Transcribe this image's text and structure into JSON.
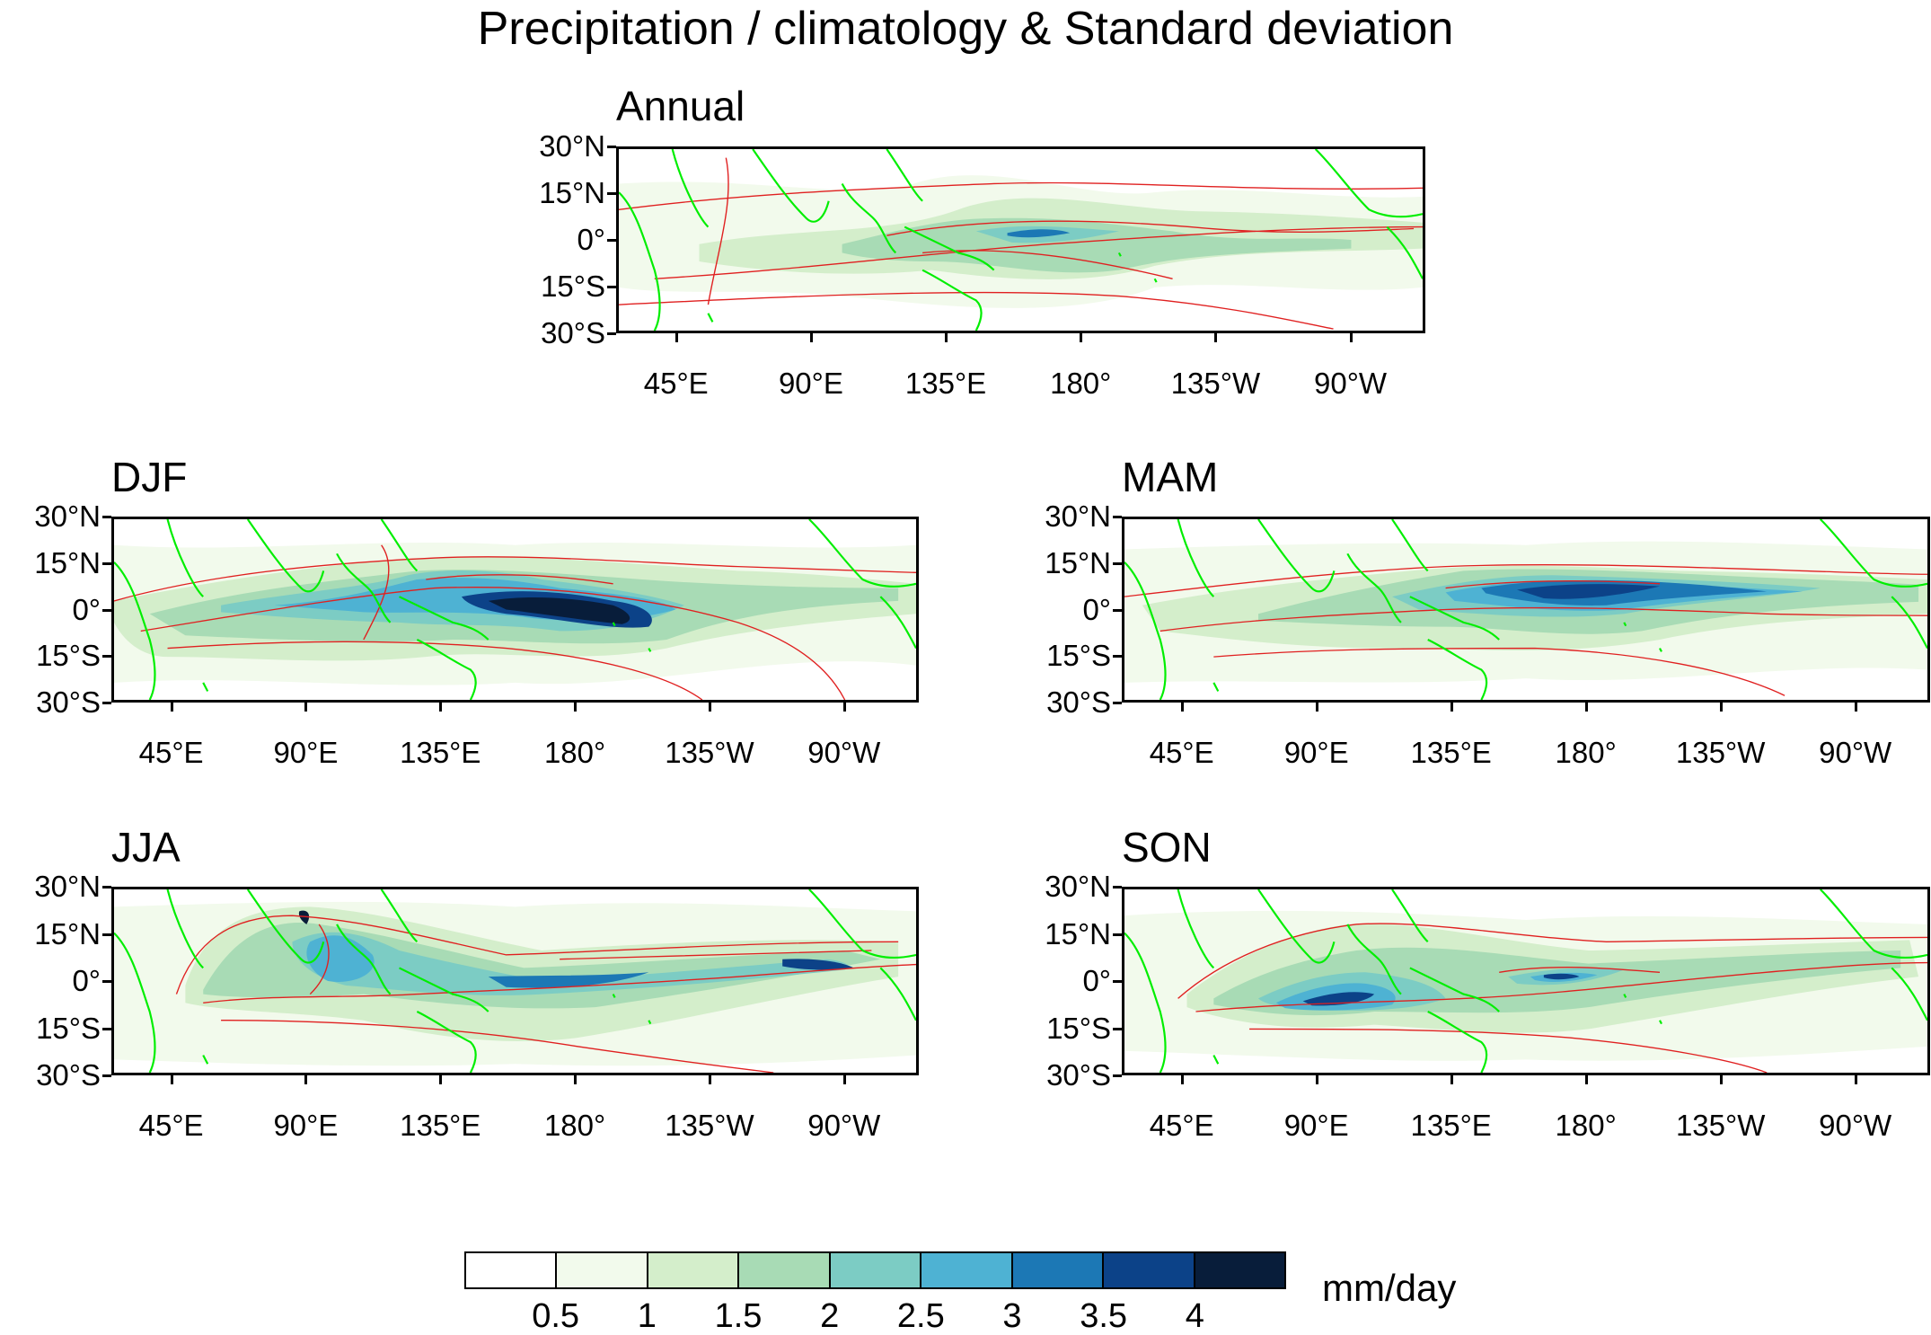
{
  "title": "Precipitation / climatology & Standard deviation",
  "lat_labels": [
    "30°N",
    "15°N",
    "0°",
    "15°S",
    "30°S"
  ],
  "lon_labels": [
    "45°E",
    "90°E",
    "135°E",
    "180°",
    "135°W",
    "90°W"
  ],
  "panels": [
    {
      "id": "annual",
      "title": "Annual"
    },
    {
      "id": "djf",
      "title": "DJF"
    },
    {
      "id": "mam",
      "title": "MAM"
    },
    {
      "id": "jja",
      "title": "JJA"
    },
    {
      "id": "son",
      "title": "SON"
    }
  ],
  "colorbar": {
    "units": "mm/day",
    "labels": [
      "0.5",
      "1",
      "1.5",
      "2",
      "2.5",
      "3",
      "3.5",
      "4"
    ],
    "colors": [
      "#ffffff",
      "#f2faec",
      "#d4eecb",
      "#a8dbb5",
      "#7cccc4",
      "#4eb2d3",
      "#1c78b5",
      "#0c4288",
      "#081d3a"
    ]
  },
  "colors": {
    "land_outline": "#00ee00",
    "contour": "#e02020"
  }
}
